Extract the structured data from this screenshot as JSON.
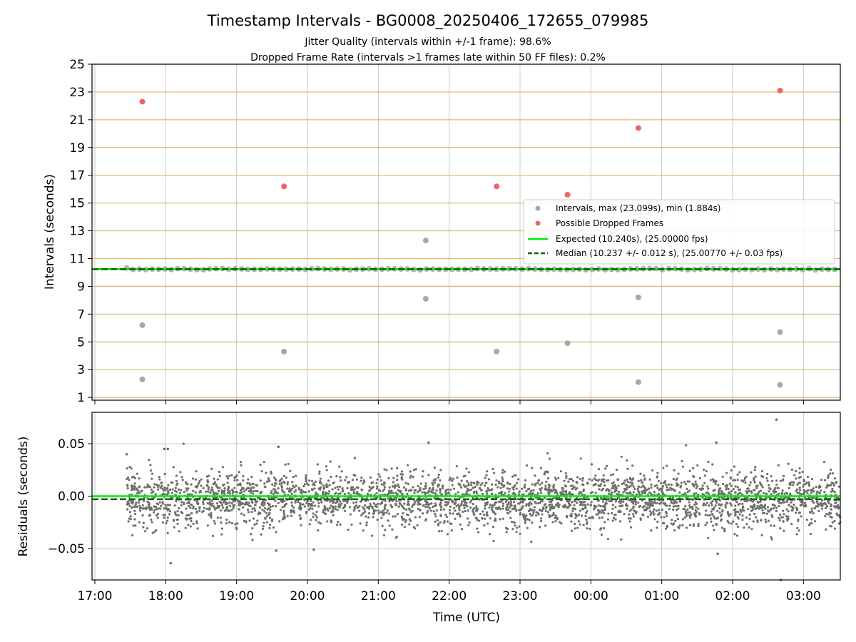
{
  "chart_data": [
    {
      "type": "scatter",
      "panel": "top",
      "title": "Timestamp Intervals - BG0008_20250406_172655_079985",
      "subtitle_lines": [
        "Jitter Quality (intervals within +/-1 frame): 98.6%",
        "Dropped Frame Rate (intervals >1 frames late within 50 FF files): 0.2%"
      ],
      "ylabel": "Intervals (seconds)",
      "xlim_hours": [
        -0.04,
        10.52
      ],
      "ylim": [
        0.8,
        25
      ],
      "y_ticks": [
        1,
        3,
        5,
        7,
        9,
        11,
        13,
        15,
        17,
        19,
        21,
        23,
        25
      ],
      "x_ticks_hours": [
        0,
        1,
        2,
        3,
        4,
        5,
        6,
        7,
        8,
        9,
        10
      ],
      "x_tick_labels": [
        "17:00",
        "18:00",
        "19:00",
        "20:00",
        "21:00",
        "22:00",
        "23:00",
        "00:00",
        "01:00",
        "02:00",
        "03:00"
      ],
      "grid": true,
      "legend_position": "center-right",
      "colors": {
        "interval": "#a8a8a8",
        "dropped": "#f06464",
        "expected": "#00ee00",
        "median": "#006400",
        "hgrid": "#d9b870",
        "vgrid": "#c8c8c8"
      },
      "series": [
        {
          "name": "Intervals, max (23.099s), min (1.884s)",
          "kind": "scatter",
          "regular_band": {
            "x_start_hours": 0.45,
            "x_end_hours": 10.52,
            "value": 10.24
          },
          "outliers": [
            {
              "x": 0.67,
              "y": 6.2
            },
            {
              "x": 0.67,
              "y": 2.3
            },
            {
              "x": 2.67,
              "y": 4.3
            },
            {
              "x": 4.67,
              "y": 12.3
            },
            {
              "x": 4.67,
              "y": 8.1
            },
            {
              "x": 5.67,
              "y": 4.3
            },
            {
              "x": 6.67,
              "y": 4.9
            },
            {
              "x": 7.67,
              "y": 8.2
            },
            {
              "x": 7.67,
              "y": 2.1
            },
            {
              "x": 9.67,
              "y": 5.7
            },
            {
              "x": 9.67,
              "y": 1.9
            }
          ]
        },
        {
          "name": "Possible Dropped Frames",
          "kind": "scatter",
          "points": [
            {
              "x": 0.67,
              "y": 22.3
            },
            {
              "x": 2.67,
              "y": 16.2
            },
            {
              "x": 5.67,
              "y": 16.2
            },
            {
              "x": 6.67,
              "y": 15.6
            },
            {
              "x": 7.67,
              "y": 20.4
            },
            {
              "x": 9.67,
              "y": 23.1
            }
          ]
        },
        {
          "name": "Expected (10.240s), (25.00000 fps)",
          "kind": "hline",
          "value": 10.24
        },
        {
          "name": "Median (10.237 +/- 0.012 s), (25.00770 +/- 0.03 fps)",
          "kind": "hline-dashed",
          "value": 10.237
        }
      ]
    },
    {
      "type": "scatter",
      "panel": "bottom",
      "xlabel": "Time (UTC)",
      "ylabel": "Residuals (seconds)",
      "xlim_hours": [
        -0.04,
        10.52
      ],
      "ylim": [
        -0.08,
        0.08
      ],
      "y_ticks": [
        0.05,
        0.0,
        -0.05
      ],
      "y_tick_labels": [
        "0.05",
        "0.00",
        "−0.05"
      ],
      "grid": true,
      "colors": {
        "residual": "#6e6e6e",
        "expected": "#00ee00",
        "median": "#006400",
        "grid": "#c8c8c8"
      },
      "series": [
        {
          "kind": "scatter",
          "distribution": {
            "x_start_hours": 0.45,
            "x_end_hours": 10.52,
            "count": 3400,
            "std": 0.0135,
            "mean": -0.003
          },
          "notable_points": [
            {
              "x": 0.45,
              "y": 0.04
            },
            {
              "x": 0.98,
              "y": 0.045
            },
            {
              "x": 1.03,
              "y": 0.045
            },
            {
              "x": 1.07,
              "y": -0.064
            },
            {
              "x": 2.59,
              "y": 0.047
            },
            {
              "x": 4.71,
              "y": 0.051
            },
            {
              "x": 8.77,
              "y": 0.051
            },
            {
              "x": 8.79,
              "y": -0.055
            },
            {
              "x": 9.62,
              "y": 0.073
            },
            {
              "x": 9.68,
              "y": -0.08
            },
            {
              "x": 2.56,
              "y": -0.052
            },
            {
              "x": 3.09,
              "y": -0.051
            }
          ]
        },
        {
          "kind": "hline",
          "value": 0.0
        },
        {
          "kind": "hline-dashed",
          "value": -0.003
        }
      ]
    }
  ]
}
